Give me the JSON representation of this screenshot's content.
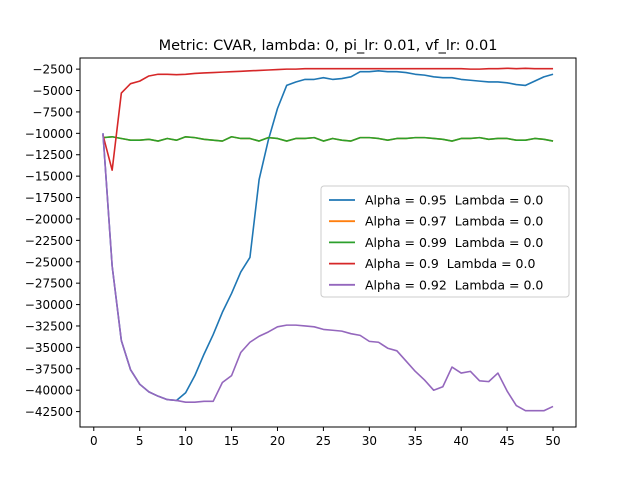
{
  "chart_data": {
    "type": "line",
    "title": "Metric: CVAR, lambda: 0, pi_lr: 0.01, vf_lr: 0.01",
    "xlabel": "",
    "ylabel": "",
    "xlim": [
      -1.5,
      52.5
    ],
    "ylim": [
      -44300,
      -1200
    ],
    "xticks": [
      0,
      5,
      10,
      15,
      20,
      25,
      30,
      35,
      40,
      45,
      50
    ],
    "yticks": [
      -2500,
      -5000,
      -7500,
      -10000,
      -12500,
      -15000,
      -17500,
      -20000,
      -22500,
      -25000,
      -27500,
      -30000,
      -32500,
      -35000,
      -37500,
      -40000,
      -42500
    ],
    "grid": false,
    "legend_position": "center-right",
    "x": [
      1,
      2,
      3,
      4,
      5,
      6,
      7,
      8,
      9,
      10,
      11,
      12,
      13,
      14,
      15,
      16,
      17,
      18,
      19,
      20,
      21,
      22,
      23,
      24,
      25,
      26,
      27,
      28,
      29,
      30,
      31,
      32,
      33,
      34,
      35,
      36,
      37,
      38,
      39,
      40,
      41,
      42,
      43,
      44,
      45,
      46,
      47,
      48,
      49,
      50
    ],
    "series": [
      {
        "name": "Alpha = 0.95  Lambda = 0.0",
        "color": "#1f77b4",
        "values": [
          -10000,
          -25500,
          -34200,
          -37600,
          -39300,
          -40200,
          -40700,
          -41100,
          -41200,
          -40300,
          -38300,
          -35800,
          -33500,
          -30900,
          -28700,
          -26200,
          -24500,
          -15400,
          -10800,
          -7100,
          -4400,
          -4000,
          -3700,
          -3700,
          -3500,
          -3700,
          -3600,
          -3400,
          -2800,
          -2800,
          -2700,
          -2800,
          -2800,
          -2900,
          -3100,
          -3200,
          -3400,
          -3500,
          -3500,
          -3700,
          -3800,
          -3900,
          -4000,
          -4000,
          -4100,
          -4300,
          -4400,
          -3900,
          -3400,
          -3100
        ]
      },
      {
        "name": "Alpha = 0.97  Lambda = 0.0",
        "color": "#ff7f0e",
        "values": [
          -10500,
          -10400,
          -10600,
          -10800,
          -10800,
          -10700,
          -10900,
          -10600,
          -10800,
          -10400,
          -10500,
          -10700,
          -10800,
          -10900,
          -10400,
          -10600,
          -10600,
          -10900,
          -10500,
          -10600,
          -10900,
          -10600,
          -10600,
          -10500,
          -10900,
          -10600,
          -10800,
          -10900,
          -10500,
          -10500,
          -10600,
          -10800,
          -10600,
          -10600,
          -10500,
          -10500,
          -10600,
          -10700,
          -10900,
          -10600,
          -10600,
          -10500,
          -10700,
          -10600,
          -10600,
          -10800,
          -10800,
          -10600,
          -10700,
          -10900
        ]
      },
      {
        "name": "Alpha = 0.99  Lambda = 0.0",
        "color": "#2ca02c",
        "values": [
          -10500,
          -10400,
          -10600,
          -10800,
          -10800,
          -10700,
          -10900,
          -10600,
          -10800,
          -10400,
          -10500,
          -10700,
          -10800,
          -10900,
          -10400,
          -10600,
          -10600,
          -10900,
          -10500,
          -10600,
          -10900,
          -10600,
          -10600,
          -10500,
          -10900,
          -10600,
          -10800,
          -10900,
          -10500,
          -10500,
          -10600,
          -10800,
          -10600,
          -10600,
          -10500,
          -10500,
          -10600,
          -10700,
          -10900,
          -10600,
          -10600,
          -10500,
          -10700,
          -10600,
          -10600,
          -10800,
          -10800,
          -10600,
          -10700,
          -10900
        ]
      },
      {
        "name": "Alpha = 0.9  Lambda = 0.0",
        "color": "#d62728",
        "values": [
          -10200,
          -14300,
          -5300,
          -4200,
          -3900,
          -3300,
          -3100,
          -3100,
          -3150,
          -3100,
          -3000,
          -2950,
          -2900,
          -2850,
          -2800,
          -2750,
          -2700,
          -2650,
          -2600,
          -2550,
          -2500,
          -2500,
          -2450,
          -2450,
          -2450,
          -2450,
          -2450,
          -2450,
          -2450,
          -2450,
          -2450,
          -2450,
          -2450,
          -2450,
          -2450,
          -2450,
          -2450,
          -2450,
          -2450,
          -2450,
          -2500,
          -2500,
          -2450,
          -2450,
          -2400,
          -2450,
          -2400,
          -2450,
          -2450,
          -2450
        ]
      },
      {
        "name": "Alpha = 0.92  Lambda = 0.0",
        "color": "#9467bd",
        "values": [
          -10000,
          -25500,
          -34200,
          -37600,
          -39300,
          -40200,
          -40700,
          -41100,
          -41200,
          -41400,
          -41400,
          -41300,
          -41300,
          -39100,
          -38300,
          -35600,
          -34400,
          -33700,
          -33200,
          -32600,
          -32400,
          -32400,
          -32500,
          -32600,
          -32900,
          -33000,
          -33100,
          -33400,
          -33600,
          -34300,
          -34400,
          -35100,
          -35400,
          -36600,
          -37800,
          -38800,
          -40000,
          -39600,
          -37300,
          -38000,
          -37800,
          -38900,
          -39000,
          -38000,
          -40100,
          -41800,
          -42400,
          -42400,
          -42400,
          -41900
        ]
      }
    ]
  }
}
